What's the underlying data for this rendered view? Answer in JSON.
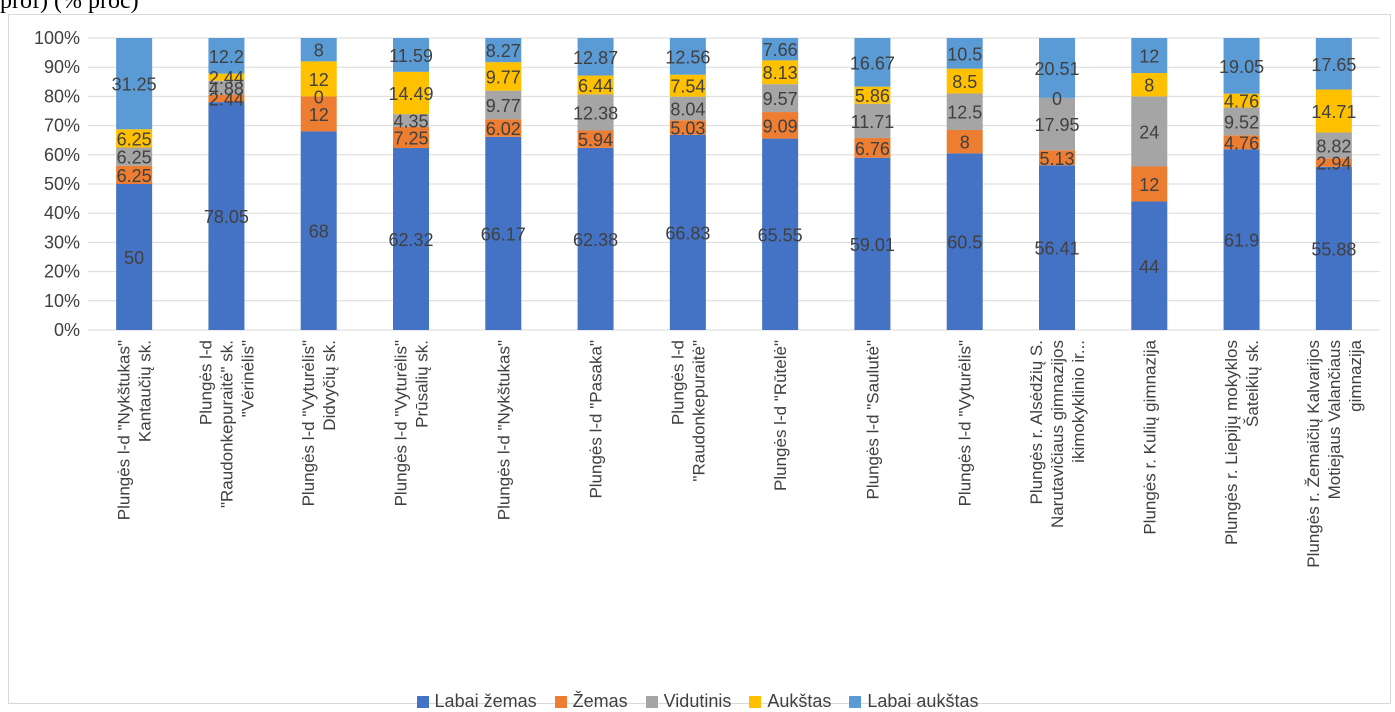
{
  "page_fragment": "prof) (% proc)",
  "colors": {
    "labai_zemas": "#4472C4",
    "zemas": "#ED7D31",
    "vidutinis": "#A5A5A5",
    "aukstas": "#FFC000",
    "labai_aukstas": "#5B9BD5",
    "grid": "#d9d9d9",
    "text": "#404040"
  },
  "chart_data": {
    "type": "bar",
    "stacked": true,
    "percent_stacked": true,
    "title": "",
    "xlabel": "",
    "ylabel": "",
    "ylim": [
      0,
      100
    ],
    "y_ticks": [
      "0%",
      "10%",
      "20%",
      "30%",
      "40%",
      "50%",
      "60%",
      "70%",
      "80%",
      "90%",
      "100%"
    ],
    "grid": true,
    "legend_position": "bottom",
    "categories": [
      [
        "Plungės l-d \"Nykštukas\"",
        "Kantaučių sk."
      ],
      [
        "Plungės l-d",
        "\"Raudonkepuraitė\" sk.",
        "\"Vėrinėlis\""
      ],
      [
        "Plungės l-d \"Vyturėlis\"",
        "Didvyčių sk."
      ],
      [
        "Plungės l-d \"Vyturėlis\"",
        "Prūsalių sk."
      ],
      [
        "Plungės l-d \"Nykštukas\""
      ],
      [
        "Plungės l-d \"Pasaka\""
      ],
      [
        "Plungės l-d",
        "\"Raudonkepuraitė\""
      ],
      [
        "Plungės l-d \"Rūtelė\""
      ],
      [
        "Plungės l-d \"Saulutė\""
      ],
      [
        "Plungės l-d \"Vyturėlis\""
      ],
      [
        "Plungės r. Alsėdžių S.",
        "Narutavičiaus gimnazijos",
        "ikimokyklinio ir..."
      ],
      [
        "Plungės r. Kulių gimnazija"
      ],
      [
        "Plungės r. Liepijų mokyklos",
        "Šateikių sk."
      ],
      [
        "Plungės r. Žemaičių Kalvarijos",
        "Motiejaus Valančiaus",
        "gimnazija"
      ]
    ],
    "series": [
      {
        "name": "Labai žemas",
        "color_key": "labai_zemas",
        "values": [
          50,
          78.05,
          68,
          62.32,
          66.17,
          62.38,
          66.83,
          65.55,
          59.01,
          60.5,
          56.41,
          44,
          61.9,
          55.88
        ],
        "labels": [
          "50",
          "78.05",
          "68",
          "62.32",
          "66.17",
          "62.38",
          "66.83",
          "65.55",
          "59.01",
          "60.5",
          "56.41",
          "44",
          "61.9",
          "55.88"
        ]
      },
      {
        "name": "Žemas",
        "color_key": "zemas",
        "values": [
          6.25,
          2.44,
          12,
          7.25,
          6.02,
          5.94,
          5.03,
          9.09,
          6.76,
          8,
          5.13,
          12,
          4.76,
          2.94
        ],
        "labels": [
          "6.25",
          "2.44",
          "12",
          "7.25",
          "6.02",
          "5.94",
          "5.03",
          "9.09",
          "6.76",
          "8",
          "5.13",
          "12",
          "4.76",
          "2.94"
        ]
      },
      {
        "name": "Vidutinis",
        "color_key": "vidutinis",
        "values": [
          6.25,
          4.88,
          0,
          4.35,
          9.77,
          12.38,
          8.04,
          9.57,
          11.71,
          12.5,
          17.95,
          24,
          9.52,
          8.82
        ],
        "labels": [
          "6.25",
          "4.88",
          "0",
          "4.35",
          "9.77",
          "12.38",
          "8.04",
          "9.57",
          "11.71",
          "12.5",
          "17.95",
          "24",
          "9.52",
          "8.82"
        ]
      },
      {
        "name": "Aukštas",
        "color_key": "aukstas",
        "values": [
          6.25,
          2.44,
          12,
          14.49,
          9.77,
          6.44,
          7.54,
          8.13,
          5.86,
          8.5,
          0,
          8,
          4.76,
          14.71
        ],
        "labels": [
          "6.25",
          "2.44",
          "12",
          "14.49",
          "9.77",
          "6.44",
          "7.54",
          "8.13",
          "5.86",
          "8.5",
          "0",
          "8",
          "4.76",
          "14.71"
        ]
      },
      {
        "name": "Labai aukštas",
        "color_key": "labai_aukstas",
        "values": [
          31.25,
          12.2,
          8,
          11.59,
          8.27,
          12.87,
          12.56,
          7.66,
          16.67,
          10.5,
          20.51,
          12,
          19.05,
          17.65
        ],
        "labels": [
          "31.25",
          "12.2",
          "8",
          "11.59",
          "8.27",
          "12.87",
          "12.56",
          "7.66",
          "16.67",
          "10.5",
          "20.51",
          "12",
          "19.05",
          "17.65"
        ]
      }
    ]
  }
}
